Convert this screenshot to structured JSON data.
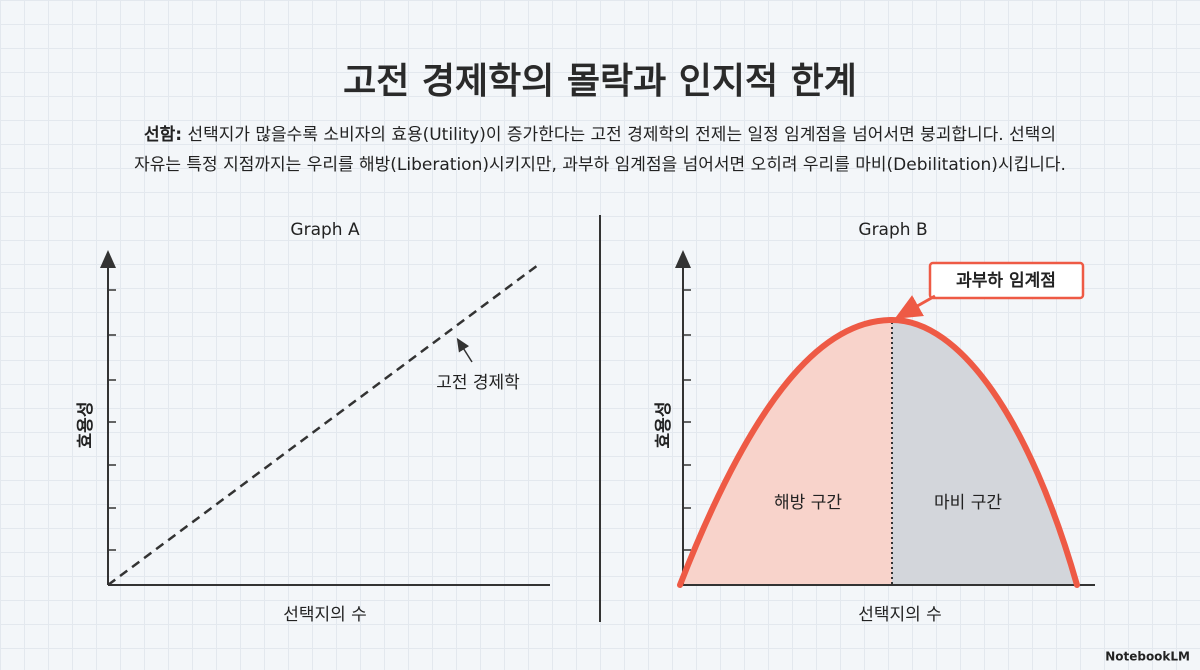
{
  "header": {
    "title": "고전 경제학의 몰락과 인지적 한계"
  },
  "description": {
    "lead": "선함:",
    "lines": [
      "선택지가 많을수록 소비자의 효용(Utility)이 증가한다는 고전 경제학의 전제는 일정 임계점을 넘어서면 붕괴합니다. 선택의",
      "자유는 특정 지점까지는 우리를 해방(Liberation)시키지만, 과부하 임계점을 넘어서면 오히려 우리를 마비(Debilitation)시킵니다."
    ]
  },
  "graph_a": {
    "title": "Graph A",
    "y_label": "효용성",
    "x_label": "선택지의 수",
    "annotation": "고전 경제학"
  },
  "graph_b": {
    "title": "Graph B",
    "y_label": "효용성",
    "x_label": "선택지의 수",
    "callout": "과부하 임계점",
    "regions": [
      "해방 구간",
      "마비 구간"
    ]
  },
  "footer": {
    "brand": "NotebookLM"
  }
}
